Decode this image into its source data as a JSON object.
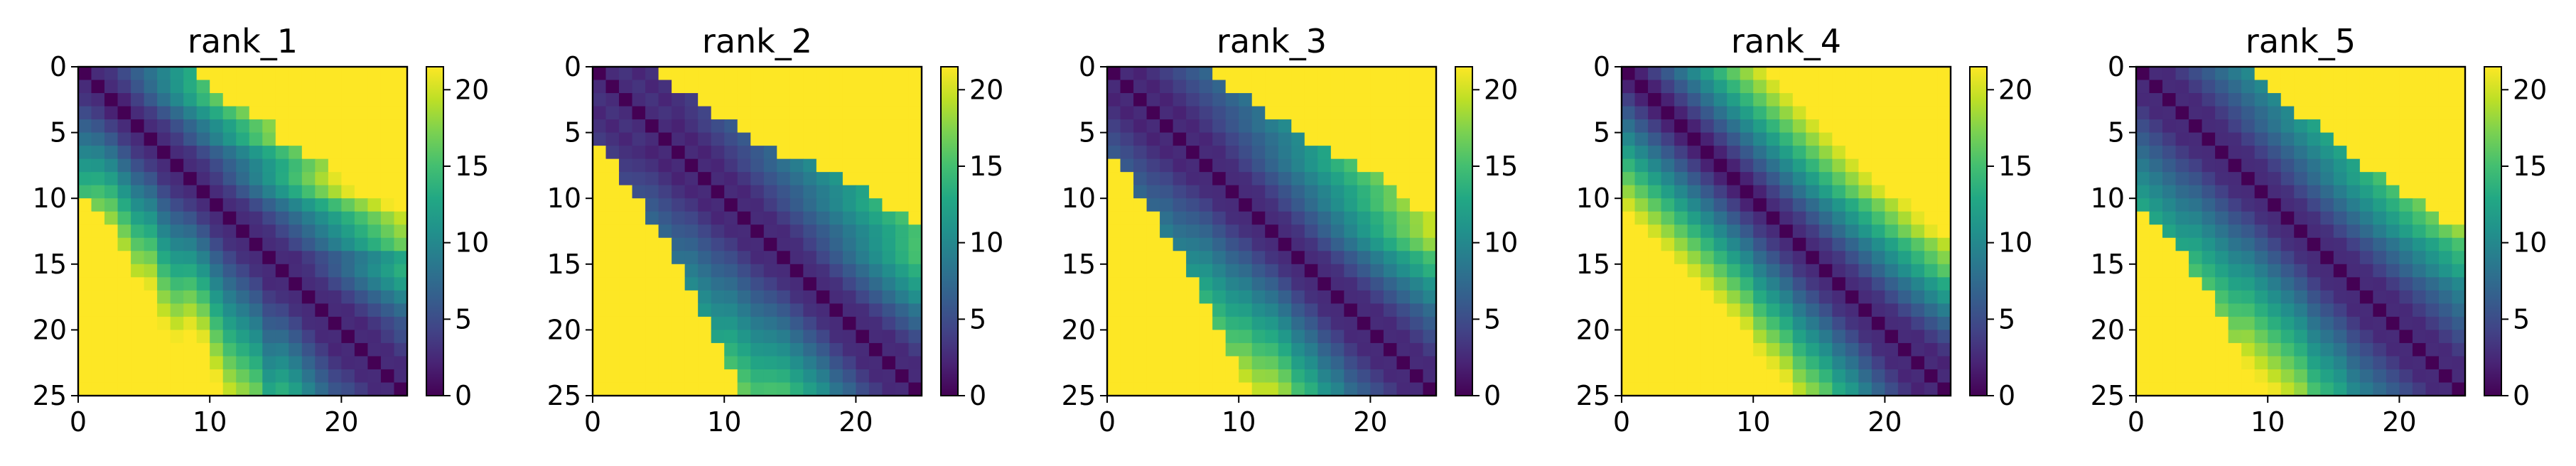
{
  "chart_data": {
    "type": "heatmap",
    "colormap": "viridis",
    "colorbar": {
      "min": 0,
      "max": 21.5,
      "ticks": [
        0,
        5,
        10,
        15,
        20
      ]
    },
    "panels": [
      {
        "title": "rank_1",
        "xticks": [
          0,
          10,
          20
        ],
        "yticks": [
          0,
          5,
          10,
          15,
          20,
          25
        ],
        "xlim": [
          0,
          25
        ],
        "ylim": [
          25,
          0
        ],
        "band": [
          13,
          15,
          16,
          15,
          14,
          15,
          13,
          13,
          15,
          15,
          13,
          12,
          12,
          12,
          10,
          12,
          12,
          11,
          10,
          9,
          10,
          10,
          10,
          10,
          9
        ],
        "upper_cut": [
          8,
          8,
          8,
          9,
          10,
          9,
          10,
          11,
          11,
          12,
          13,
          13,
          13,
          14,
          15,
          15,
          16,
          17,
          18,
          19,
          20,
          21,
          22,
          23,
          24
        ],
        "lower_cut": [
          9,
          9,
          9,
          10,
          11,
          12,
          13,
          14,
          15,
          16,
          17,
          16,
          17,
          18,
          19,
          20,
          21,
          21,
          22,
          23,
          24,
          24,
          25,
          25,
          25
        ]
      },
      {
        "title": "rank_2",
        "xticks": [
          0,
          10,
          20
        ],
        "yticks": [
          0,
          5,
          10,
          15,
          20,
          25
        ],
        "xlim": [
          0,
          25
        ],
        "ylim": [
          25,
          0
        ],
        "band": [
          6,
          6,
          6,
          7,
          8,
          8,
          8,
          9,
          9,
          9,
          10,
          10,
          10,
          11,
          12,
          12,
          12,
          12,
          11,
          11,
          10,
          10,
          10,
          10,
          10
        ],
        "upper_cut": [
          4,
          4,
          5,
          5,
          6,
          6,
          7,
          9,
          10,
          11,
          11,
          12,
          13,
          14,
          15,
          16,
          17,
          18,
          19,
          20,
          21,
          22,
          23,
          24,
          25
        ],
        "lower_cut": [
          5,
          5,
          6,
          6,
          7,
          7,
          8,
          9,
          10,
          11,
          12,
          13,
          14,
          15,
          16,
          17,
          18,
          19,
          20,
          21,
          22,
          23,
          24,
          25,
          25
        ]
      },
      {
        "title": "rank_3",
        "xticks": [
          0,
          10,
          20
        ],
        "yticks": [
          0,
          5,
          10,
          15,
          20,
          25
        ],
        "xlim": [
          0,
          25
        ],
        "ylim": [
          25,
          0
        ],
        "band": [
          8,
          8,
          8,
          8,
          9,
          9,
          10,
          11,
          11,
          11,
          12,
          12,
          13,
          13,
          12,
          12,
          11,
          11,
          10,
          10,
          10,
          10,
          10,
          10,
          10
        ],
        "upper_cut": [
          7,
          7,
          8,
          8,
          9,
          9,
          10,
          11,
          12,
          12,
          12,
          13,
          14,
          15,
          16,
          17,
          18,
          19,
          20,
          21,
          22,
          23,
          24,
          25,
          25
        ],
        "lower_cut": [
          6,
          6,
          7,
          7,
          8,
          8,
          9,
          10,
          11,
          12,
          13,
          14,
          15,
          16,
          17,
          18,
          19,
          20,
          21,
          22,
          23,
          24,
          25,
          25,
          25
        ]
      },
      {
        "title": "rank_4",
        "xticks": [
          0,
          10,
          20
        ],
        "yticks": [
          0,
          5,
          10,
          15,
          20,
          25
        ],
        "xlim": [
          0,
          25
        ],
        "ylim": [
          25,
          0
        ],
        "band": [
          16,
          16,
          16,
          16,
          16,
          16,
          16,
          16,
          16,
          16,
          15,
          15,
          15,
          14,
          14,
          14,
          13,
          13,
          12,
          11,
          10,
          9,
          8,
          7,
          7
        ],
        "upper_cut": [
          10,
          10,
          10,
          10,
          10,
          11,
          11,
          12,
          12,
          12,
          12,
          12,
          12,
          13,
          14,
          15,
          16,
          17,
          18,
          19,
          20,
          21,
          22,
          23,
          24
        ],
        "lower_cut": [
          11,
          11,
          11,
          12,
          12,
          12,
          12,
          13,
          13,
          14,
          14,
          15,
          16,
          17,
          18,
          19,
          20,
          21,
          22,
          23,
          24,
          25,
          25,
          25,
          25
        ]
      },
      {
        "title": "rank_5",
        "xticks": [
          0,
          10,
          20
        ],
        "yticks": [
          0,
          5,
          10,
          15,
          20,
          25
        ],
        "xlim": [
          0,
          25
        ],
        "ylim": [
          25,
          0
        ],
        "band": [
          10,
          10,
          10,
          10,
          11,
          11,
          11,
          11,
          12,
          12,
          12,
          12,
          12,
          11,
          11,
          11,
          10,
          10,
          10,
          10,
          10,
          10,
          10,
          10,
          10
        ],
        "upper_cut": [
          8,
          8,
          8,
          8,
          9,
          9,
          9,
          9,
          10,
          10,
          11,
          11,
          12,
          13,
          14,
          15,
          16,
          17,
          18,
          19,
          20,
          21,
          22,
          23,
          24
        ],
        "lower_cut": [
          10,
          10,
          10,
          10,
          11,
          11,
          12,
          13,
          14,
          15,
          16,
          16,
          17,
          18,
          19,
          20,
          21,
          22,
          23,
          24,
          25,
          25,
          25,
          25,
          25
        ]
      }
    ]
  }
}
